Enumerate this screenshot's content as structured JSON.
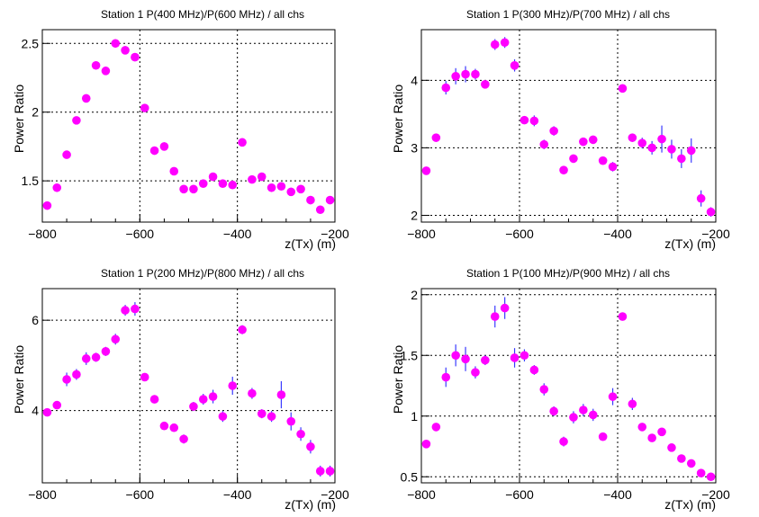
{
  "colors": {
    "marker": "#ff00ff",
    "errorbar": "#3a3aff",
    "axis": "#000000",
    "grid": "#000000"
  },
  "chart_data": [
    {
      "type": "scatter",
      "title": "Station 1 P(400 MHz)/P(600 MHz) / all chs",
      "xlabel": "z(Tx) (m)",
      "ylabel": "Power Ratio",
      "xlim": [
        -800,
        -200
      ],
      "ylim": [
        1.2,
        2.6
      ],
      "xticks": [
        -800,
        -600,
        -400,
        -200
      ],
      "xtick_labels": [
        "−800",
        "−600",
        "−400",
        "−200"
      ],
      "yticks": [
        1.5,
        2,
        2.5
      ],
      "ytick_labels": [
        "1.5",
        "2",
        "2.5"
      ],
      "grid": true,
      "x": [
        -790,
        -770,
        -750,
        -730,
        -710,
        -690,
        -670,
        -650,
        -630,
        -610,
        -590,
        -570,
        -550,
        -530,
        -510,
        -490,
        -470,
        -450,
        -430,
        -410,
        -390,
        -370,
        -350,
        -330,
        -310,
        -290,
        -270,
        -250,
        -230,
        -210
      ],
      "y": [
        1.32,
        1.45,
        1.69,
        1.94,
        2.1,
        2.34,
        2.3,
        2.5,
        2.45,
        2.4,
        2.03,
        1.72,
        1.75,
        1.57,
        1.44,
        1.44,
        1.48,
        1.53,
        1.48,
        1.47,
        1.78,
        1.51,
        1.53,
        1.45,
        1.46,
        1.42,
        1.44,
        1.36,
        1.29,
        1.36
      ],
      "yerr": [
        0.02,
        0.02,
        0.02,
        0.02,
        0.03,
        0.03,
        0.03,
        0.03,
        0.03,
        0.03,
        0.02,
        0.02,
        0.03,
        0.02,
        0.02,
        0.02,
        0.02,
        0.02,
        0.02,
        0.02,
        0.02,
        0.02,
        0.02,
        0.02,
        0.02,
        0.03,
        0.02,
        0.03,
        0.02,
        0.02
      ]
    },
    {
      "type": "scatter",
      "title": "Station 1 P(300 MHz)/P(700 MHz) / all chs",
      "xlabel": "z(Tx) (m)",
      "ylabel": "Power Ratio",
      "xlim": [
        -800,
        -200
      ],
      "ylim": [
        1.9,
        4.75
      ],
      "xticks": [
        -800,
        -600,
        -400,
        -200
      ],
      "xtick_labels": [
        "−800",
        "−600",
        "−400",
        "−200"
      ],
      "yticks": [
        2,
        3,
        4
      ],
      "ytick_labels": [
        "2",
        "3",
        "4"
      ],
      "grid": true,
      "x": [
        -790,
        -770,
        -750,
        -730,
        -710,
        -690,
        -670,
        -650,
        -630,
        -610,
        -590,
        -570,
        -550,
        -530,
        -510,
        -490,
        -470,
        -450,
        -430,
        -410,
        -390,
        -370,
        -350,
        -330,
        -310,
        -290,
        -270,
        -250,
        -230,
        -210
      ],
      "y": [
        2.66,
        3.15,
        3.89,
        4.06,
        4.09,
        4.09,
        3.94,
        4.53,
        4.56,
        4.22,
        3.41,
        3.4,
        3.05,
        3.25,
        2.67,
        2.84,
        3.09,
        3.12,
        2.81,
        2.72,
        3.88,
        3.15,
        3.07,
        3.0,
        3.13,
        2.98,
        2.84,
        2.96,
        2.25,
        2.05
      ],
      "yerr": [
        0.05,
        0.05,
        0.1,
        0.12,
        0.12,
        0.08,
        0.06,
        0.08,
        0.08,
        0.09,
        0.05,
        0.08,
        0.07,
        0.07,
        0.06,
        0.05,
        0.05,
        0.06,
        0.05,
        0.07,
        0.05,
        0.06,
        0.08,
        0.1,
        0.2,
        0.14,
        0.14,
        0.18,
        0.12,
        0.07
      ]
    },
    {
      "type": "scatter",
      "title": "Station 1 P(200 MHz)/P(800 MHz) / all chs",
      "xlabel": "z(Tx) (m)",
      "ylabel": "Power Ratio",
      "xlim": [
        -800,
        -200
      ],
      "ylim": [
        2.4,
        6.7
      ],
      "xticks": [
        -800,
        -600,
        -400,
        -200
      ],
      "xtick_labels": [
        "−800",
        "−600",
        "−400",
        "−200"
      ],
      "yticks": [
        4,
        6
      ],
      "ytick_labels": [
        "4",
        "6"
      ],
      "grid": true,
      "x": [
        -790,
        -770,
        -750,
        -730,
        -710,
        -690,
        -670,
        -650,
        -630,
        -610,
        -590,
        -570,
        -550,
        -530,
        -510,
        -490,
        -470,
        -450,
        -430,
        -410,
        -390,
        -370,
        -350,
        -330,
        -310,
        -290,
        -270,
        -250,
        -230,
        -210
      ],
      "y": [
        3.96,
        4.12,
        4.69,
        4.8,
        5.15,
        5.18,
        5.31,
        5.58,
        6.22,
        6.25,
        4.74,
        4.25,
        3.66,
        3.62,
        3.37,
        4.09,
        4.25,
        4.31,
        3.87,
        4.55,
        5.79,
        4.38,
        3.93,
        3.87,
        4.35,
        3.76,
        3.48,
        3.2,
        2.66,
        2.66
      ],
      "yerr": [
        0.08,
        0.08,
        0.15,
        0.12,
        0.14,
        0.1,
        0.1,
        0.12,
        0.12,
        0.15,
        0.08,
        0.08,
        0.08,
        0.08,
        0.1,
        0.1,
        0.12,
        0.15,
        0.12,
        0.2,
        0.1,
        0.12,
        0.1,
        0.12,
        0.3,
        0.2,
        0.15,
        0.15,
        0.12,
        0.12
      ]
    },
    {
      "type": "scatter",
      "title": "Station 1 P(100 MHz)/P(900 MHz) / all chs",
      "xlabel": "z(Tx) (m)",
      "ylabel": "Power Ratio",
      "xlim": [
        -800,
        -200
      ],
      "ylim": [
        0.45,
        2.05
      ],
      "xticks": [
        -800,
        -600,
        -400,
        -200
      ],
      "xtick_labels": [
        "−800",
        "−600",
        "−400",
        "−200"
      ],
      "yticks": [
        0.5,
        1,
        1.5,
        2
      ],
      "ytick_labels": [
        "0.5",
        "1",
        "1.5",
        "2"
      ],
      "grid": true,
      "x": [
        -790,
        -770,
        -750,
        -730,
        -710,
        -690,
        -670,
        -650,
        -630,
        -610,
        -590,
        -570,
        -550,
        -530,
        -510,
        -490,
        -470,
        -450,
        -430,
        -410,
        -390,
        -370,
        -350,
        -330,
        -310,
        -290,
        -270,
        -250,
        -230,
        -210
      ],
      "y": [
        0.77,
        0.91,
        1.32,
        1.5,
        1.47,
        1.36,
        1.46,
        1.82,
        1.89,
        1.48,
        1.5,
        1.38,
        1.22,
        1.04,
        0.79,
        0.99,
        1.05,
        1.01,
        0.83,
        1.16,
        1.82,
        1.1,
        0.91,
        0.82,
        0.87,
        0.74,
        0.65,
        0.61,
        0.53,
        0.5
      ],
      "yerr": [
        0.02,
        0.03,
        0.08,
        0.09,
        0.1,
        0.05,
        0.04,
        0.09,
        0.09,
        0.08,
        0.05,
        0.04,
        0.05,
        0.04,
        0.04,
        0.05,
        0.05,
        0.05,
        0.03,
        0.07,
        0.03,
        0.05,
        0.03,
        0.02,
        0.03,
        0.02,
        0.02,
        0.02,
        0.02,
        0.02
      ]
    }
  ]
}
